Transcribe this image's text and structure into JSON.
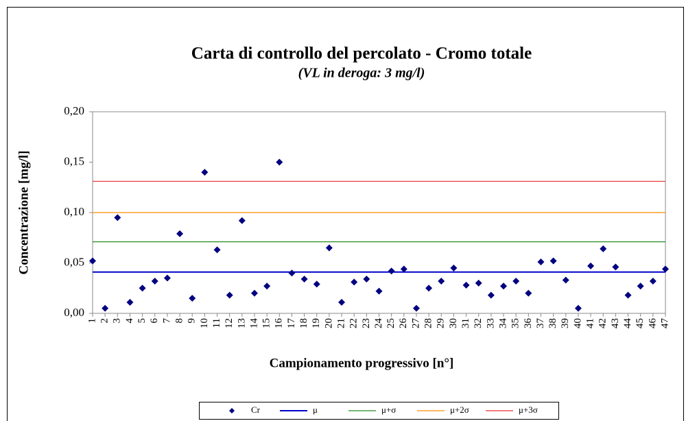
{
  "chart_data": {
    "type": "scatter",
    "title": "Carta di controllo del percolato - Cromo totale",
    "subtitle": "(VL in deroga: 3 mg/l)",
    "x_label": "Campionamento  progressivo [n°]",
    "y_label": "Concentrazione  [mg/l]",
    "categories": [
      "1",
      "2",
      "3",
      "4",
      "5",
      "6",
      "7",
      "8",
      "9",
      "10",
      "11",
      "12",
      "13",
      "14",
      "15",
      "16",
      "17",
      "18",
      "19",
      "20",
      "21",
      "22",
      "23",
      "24",
      "25",
      "26",
      "27",
      "28",
      "29",
      "30",
      "31",
      "32",
      "33",
      "34",
      "35",
      "36",
      "37",
      "38",
      "39",
      "40",
      "41",
      "42",
      "43",
      "44",
      "45",
      "46",
      "47"
    ],
    "series": [
      {
        "name": "Cr",
        "color": "#000080",
        "values": [
          0.052,
          0.005,
          0.095,
          0.011,
          0.025,
          0.032,
          0.035,
          0.079,
          0.015,
          0.14,
          0.063,
          0.018,
          0.092,
          0.02,
          0.027,
          0.15,
          0.04,
          0.034,
          0.029,
          0.065,
          0.011,
          0.031,
          0.034,
          0.022,
          0.042,
          0.044,
          0.005,
          0.025,
          0.032,
          0.045,
          0.028,
          0.03,
          0.018,
          0.027,
          0.032,
          0.02,
          0.051,
          0.052,
          0.033,
          0.005,
          0.047,
          0.064,
          0.046,
          0.018,
          0.027,
          0.032,
          0.044
        ]
      }
    ],
    "reference_lines": [
      {
        "name": "μ",
        "color": "#0000cc",
        "value": 0.041
      },
      {
        "name": "μ+σ",
        "color": "#228b22",
        "value": 0.071
      },
      {
        "name": "μ+2σ",
        "color": "#ff8c00",
        "value": 0.1
      },
      {
        "name": "μ+3σ",
        "color": "#e83030",
        "value": 0.131
      }
    ],
    "ylim": [
      0,
      0.2
    ],
    "yticks": [
      {
        "value": 0,
        "label": "0,00"
      },
      {
        "value": 0.05,
        "label": "0,05"
      },
      {
        "value": 0.1,
        "label": "0,10"
      },
      {
        "value": 0.15,
        "label": "0,15"
      },
      {
        "value": 0.2,
        "label": "0,20"
      }
    ],
    "legend": "bottom"
  }
}
